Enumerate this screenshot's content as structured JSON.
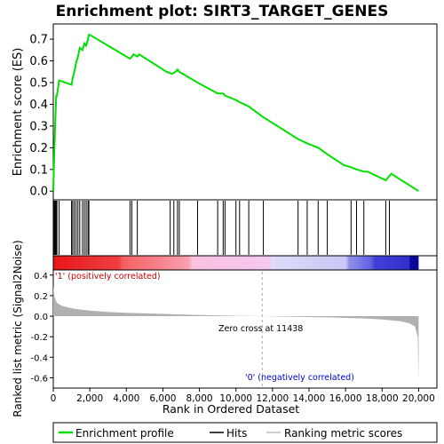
{
  "chart_data": {
    "type": "line",
    "title": "Enrichment plot: SIRT3_TARGET_GENES",
    "top_panel": {
      "ylabel": "Enrichment score (ES)",
      "ylim": [
        -0.04,
        0.77
      ],
      "yticks": [
        "0.0",
        "0.1",
        "0.2",
        "0.3",
        "0.4",
        "0.5",
        "0.6",
        "0.7"
      ],
      "series": [
        {
          "name": "Enrichment profile",
          "x": [
            0,
            40,
            80,
            120,
            160,
            200,
            320,
            1000,
            1060,
            1150,
            1250,
            1350,
            1450,
            1600,
            1700,
            1800,
            1900,
            1950,
            2000,
            4200,
            4300,
            4400,
            4600,
            4700,
            6200,
            6500,
            6700,
            6800,
            6900,
            7900,
            9000,
            9300,
            9400,
            10000,
            10200,
            10700,
            11500,
            13400,
            13900,
            14500,
            15000,
            15900,
            16300,
            16600,
            17000,
            17200,
            18200,
            18300,
            18500,
            20000
          ],
          "y": [
            0.0,
            0.13,
            0.24,
            0.35,
            0.44,
            0.44,
            0.51,
            0.49,
            0.52,
            0.55,
            0.59,
            0.62,
            0.66,
            0.65,
            0.68,
            0.67,
            0.7,
            0.72,
            0.72,
            0.61,
            0.62,
            0.63,
            0.62,
            0.63,
            0.55,
            0.54,
            0.55,
            0.56,
            0.55,
            0.5,
            0.45,
            0.45,
            0.44,
            0.42,
            0.41,
            0.39,
            0.34,
            0.24,
            0.22,
            0.2,
            0.17,
            0.12,
            0.11,
            0.1,
            0.09,
            0.09,
            0.05,
            0.06,
            0.08,
            0.0
          ]
        }
      ],
      "color": "#00e000"
    },
    "hits": {
      "name": "Hits",
      "positions": [
        40,
        80,
        120,
        160,
        200,
        320,
        1000,
        1060,
        1150,
        1250,
        1350,
        1450,
        1600,
        1700,
        1800,
        1900,
        1950,
        4200,
        4300,
        4600,
        6400,
        6600,
        6800,
        6900,
        7900,
        9000,
        9300,
        9400,
        10000,
        10200,
        10700,
        11500,
        13400,
        13900,
        14500,
        15000,
        16300,
        16600,
        17000,
        18200,
        18400
      ]
    },
    "bottom_panel": {
      "name": "Ranking metric scores",
      "xlabel": "Rank in Ordered Dataset",
      "ylabel": "Ranked list metric (Signal2Noise)",
      "xlim": [
        0,
        21000
      ],
      "ylim": [
        -0.7,
        0.45
      ],
      "xticks": [
        "0",
        "2,000",
        "4,000",
        "6,000",
        "8,000",
        "10,000",
        "12,000",
        "14,000",
        "16,000",
        "18,000",
        "20,000"
      ],
      "yticks": [
        "0.4",
        "0.2",
        "0.0",
        "-0.2",
        "-0.4",
        "-0.6"
      ],
      "metric_x": [
        0,
        20,
        60,
        120,
        200,
        350,
        500,
        800,
        1200,
        2000,
        3000,
        4000,
        6000,
        8000,
        10000,
        11438,
        13000,
        15000,
        17000,
        18000,
        19000,
        19500,
        19800,
        19950,
        20000
      ],
      "metric_y": [
        0.3,
        0.26,
        0.2,
        0.16,
        0.13,
        0.11,
        0.1,
        0.085,
        0.07,
        0.055,
        0.04,
        0.032,
        0.022,
        0.012,
        0.004,
        0.0,
        -0.005,
        -0.012,
        -0.022,
        -0.032,
        -0.05,
        -0.07,
        -0.1,
        -0.2,
        -0.63
      ],
      "zero_cross_label": "Zero cross at 11438",
      "positive_label": "'1' (positively correlated)",
      "negative_label": "'0' (negatively correlated)",
      "gray": "#b0b0b0"
    },
    "legend": {
      "placement": "bottom",
      "entries": [
        "Enrichment profile",
        "Hits",
        "Ranking metric scores"
      ]
    },
    "grid": false
  }
}
